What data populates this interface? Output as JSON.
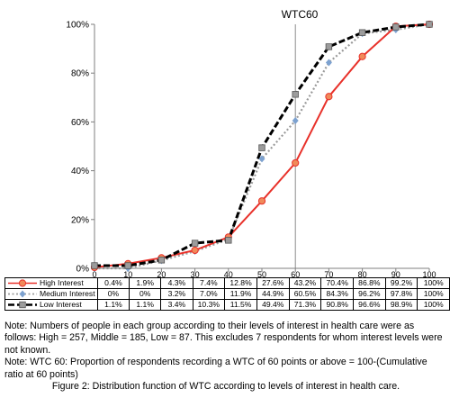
{
  "chart_data": {
    "type": "line",
    "title": "WTC60",
    "categories": [
      "0",
      "10",
      "20",
      "30",
      "40",
      "50",
      "60",
      "70",
      "80",
      "90",
      "100"
    ],
    "ylim": [
      0,
      100
    ],
    "yticks": [
      "0%",
      "20%",
      "40%",
      "60%",
      "80%",
      "100%"
    ],
    "grid": false,
    "reference_line_x": "60",
    "series": [
      {
        "name": "High Interest",
        "color": "#e8312a",
        "marker": "circle",
        "line_style": "solid",
        "values": [
          0.4,
          1.9,
          4.3,
          7.4,
          12.8,
          27.6,
          43.2,
          70.4,
          86.8,
          99.2,
          100
        ],
        "labels": [
          "0.4%",
          "1.9%",
          "4.3%",
          "7.4%",
          "12.8%",
          "27.6%",
          "43.2%",
          "70.4%",
          "86.8%",
          "99.2%",
          "100%"
        ]
      },
      {
        "name": "Medium Interest",
        "color": "#9a9a9a",
        "marker_color": "#7da2d0",
        "marker": "diamond",
        "line_style": "dotted",
        "values": [
          0,
          0,
          3.2,
          7.0,
          11.9,
          44.9,
          60.5,
          84.3,
          96.2,
          97.8,
          100
        ],
        "labels": [
          "0%",
          "0%",
          "3.2%",
          "7.0%",
          "11.9%",
          "44.9%",
          "60.5%",
          "84.3%",
          "96.2%",
          "97.8%",
          "100%"
        ]
      },
      {
        "name": "Low Interest",
        "color": "#000000",
        "marker_color": "#9c9c9c",
        "marker": "square",
        "line_style": "dashed",
        "values": [
          1.1,
          1.1,
          3.4,
          10.3,
          11.5,
          49.4,
          71.3,
          90.8,
          96.6,
          98.9,
          100
        ],
        "labels": [
          "1.1%",
          "1.1%",
          "3.4%",
          "10.3%",
          "11.5%",
          "49.4%",
          "71.3%",
          "90.8%",
          "96.6%",
          "98.9%",
          "100%"
        ]
      }
    ]
  },
  "notes": {
    "note1": "Note: Numbers of people in each group according to their levels of interest in health care were as follows: High = 257, Middle = 185, Low = 87. This excludes 7 respondents for whom interest levels were not known.",
    "note2": "Note: WTC 60: Proportion of respondents recording a WTC of 60 points or above = 100-(Cumulative ratio at 60 points)",
    "caption": "Figure 2: Distribution function of  WTC according to levels of interest in health care."
  }
}
